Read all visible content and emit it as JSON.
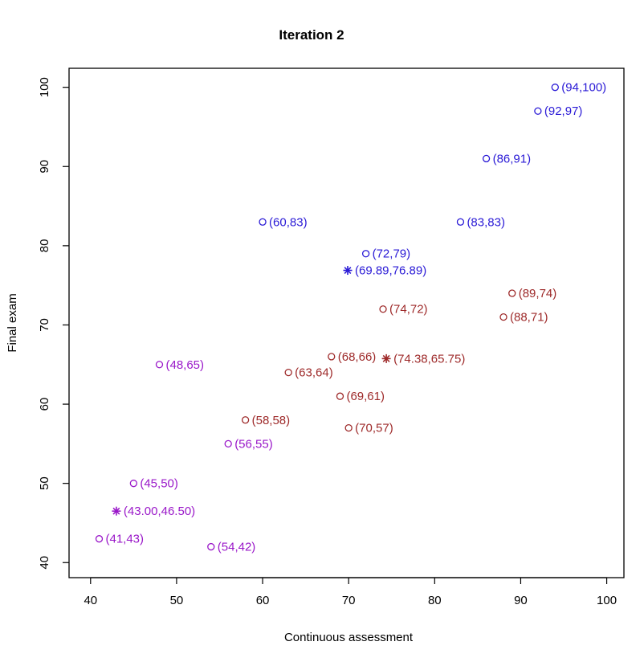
{
  "chart_data": {
    "type": "scatter",
    "title": "Iteration 2",
    "xlabel": "Continuous assessment",
    "ylabel": "Final exam",
    "xlim": [
      37.5,
      102
    ],
    "ylim": [
      38.1,
      102.4
    ],
    "xticks": [
      40,
      50,
      60,
      70,
      80,
      90,
      100
    ],
    "yticks": [
      40,
      50,
      60,
      70,
      80,
      90,
      100
    ],
    "grid": false,
    "legend": "none",
    "clusters": [
      {
        "color": "#2a1ad6",
        "points": [
          {
            "x": 94,
            "y": 100,
            "label": "(94,100)"
          },
          {
            "x": 92,
            "y": 97,
            "label": "(92,97)"
          },
          {
            "x": 86,
            "y": 91,
            "label": "(86,91)"
          },
          {
            "x": 60,
            "y": 83,
            "label": "(60,83)"
          },
          {
            "x": 83,
            "y": 83,
            "label": "(83,83)"
          },
          {
            "x": 72,
            "y": 79,
            "label": "(72,79)"
          }
        ],
        "centroid": {
          "x": 69.89,
          "y": 76.89,
          "label": "(69.89,76.89)"
        }
      },
      {
        "color": "#9e2a2a",
        "points": [
          {
            "x": 89,
            "y": 74,
            "label": "(89,74)"
          },
          {
            "x": 74,
            "y": 72,
            "label": "(74,72)"
          },
          {
            "x": 88,
            "y": 71,
            "label": "(88,71)"
          },
          {
            "x": 68,
            "y": 66,
            "label": "(68,66)"
          },
          {
            "x": 63,
            "y": 64,
            "label": "(63,64)"
          },
          {
            "x": 69,
            "y": 61,
            "label": "(69,61)"
          },
          {
            "x": 58,
            "y": 58,
            "label": "(58,58)"
          },
          {
            "x": 70,
            "y": 57,
            "label": "(70,57)"
          }
        ],
        "centroid": {
          "x": 74.38,
          "y": 65.75,
          "label": "(74.38,65.75)"
        }
      },
      {
        "color": "#9a18c9",
        "points": [
          {
            "x": 48,
            "y": 65,
            "label": "(48,65)"
          },
          {
            "x": 56,
            "y": 55,
            "label": "(56,55)"
          },
          {
            "x": 45,
            "y": 50,
            "label": "(45,50)"
          },
          {
            "x": 41,
            "y": 43,
            "label": "(41,43)"
          },
          {
            "x": 54,
            "y": 42,
            "label": "(54,42)"
          }
        ],
        "centroid": {
          "x": 43.0,
          "y": 46.5,
          "label": "(43.00,46.50)"
        }
      }
    ]
  }
}
